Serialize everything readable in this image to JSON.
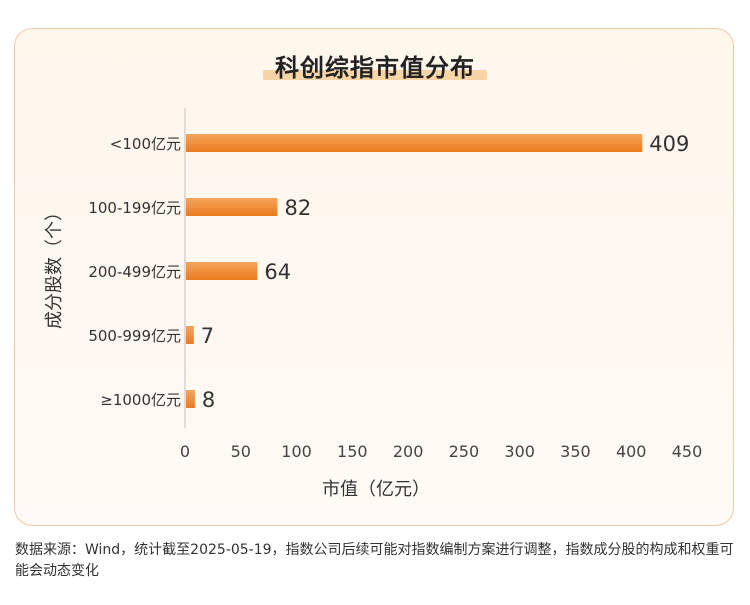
{
  "chart_data": {
    "type": "bar",
    "orientation": "horizontal",
    "title": "科创综指市值分布",
    "categories": [
      "<100亿元",
      "100-199亿元",
      "200-499亿元",
      "500-999亿元",
      "≥1000亿元"
    ],
    "values": [
      409,
      82,
      64,
      7,
      8
    ],
    "xlabel": "市值（亿元）",
    "ylabel": "成分股数（个）",
    "xlim": [
      0,
      450
    ],
    "xticks": [
      "0",
      "50",
      "100",
      "150",
      "200",
      "250",
      "300",
      "350",
      "400",
      "450"
    ],
    "grid": false,
    "bar_color": "#f08a2c"
  },
  "footnote": "数据来源：Wind，统计截至2025-05-19，指数公司后续可能对指数编制方案进行调整，指数成分股的构成和权重可能会动态变化"
}
